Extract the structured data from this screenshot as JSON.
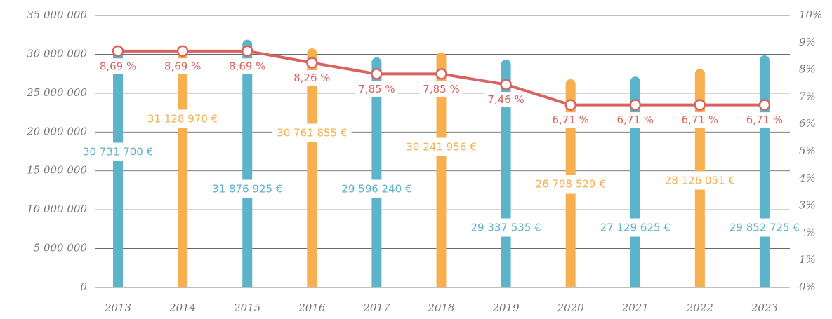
{
  "chart_data": {
    "type": "bar-line",
    "categories": [
      "2013",
      "2014",
      "2015",
      "2016",
      "2017",
      "2018",
      "2019",
      "2020",
      "2021",
      "2022",
      "2023"
    ],
    "series": [
      {
        "type": "bar",
        "colors": [
          "#5bb4c9",
          "#f7b050",
          "#5bb4c9",
          "#f7b050",
          "#5bb4c9",
          "#f7b050",
          "#5bb4c9",
          "#f7b050",
          "#5bb4c9",
          "#f7b050",
          "#5bb4c9"
        ],
        "values": [
          30731700,
          31128970,
          31876925,
          30761855,
          29596240,
          30241956,
          29337535,
          26798529,
          27129625,
          28126051,
          29852725
        ],
        "value_labels": [
          "30 731 700 €",
          "31 128 970 €",
          "31 876 925 €",
          "30 761 855 €",
          "29 596 240 €",
          "30 241 956 €",
          "29 337 535 €",
          "26 798 529 €",
          "27 129 625 €",
          "28 126 051 €",
          "29 852 725 €"
        ]
      },
      {
        "type": "line",
        "axis": "y2",
        "color": "#d9625f",
        "values": [
          8.69,
          8.69,
          8.69,
          8.26,
          7.85,
          7.85,
          7.46,
          6.71,
          6.71,
          6.71,
          6.71
        ],
        "value_labels": [
          "8,69 %",
          "8,69 %",
          "8,69 %",
          "8,26 %",
          "7,85 %",
          "7,85 %",
          "7,46 %",
          "6,71 %",
          "6,71 %",
          "6,71 %",
          "6,71 %"
        ]
      }
    ],
    "ylim": [
      0,
      35000000
    ],
    "yticks": [
      0,
      {
        "value": 5000000,
        "label": "5 000 000"
      },
      {
        "value": 10000000,
        "label": "10 000 000"
      },
      {
        "value": 15000000,
        "label": "15 000 000"
      },
      {
        "value": 20000000,
        "label": "20 000 000"
      },
      {
        "value": 25000000,
        "label": "25 000 000"
      },
      {
        "value": 30000000,
        "label": "30 000 000"
      },
      {
        "value": 35000000,
        "label": "35 000 000"
      }
    ],
    "y2lim": [
      0,
      10
    ],
    "y2ticks": [
      {
        "value": 0,
        "label": "0%"
      },
      {
        "value": 1,
        "label": "1%"
      },
      {
        "value": 2,
        "label": "2%"
      },
      {
        "value": 3,
        "label": "3%"
      },
      {
        "value": 4,
        "label": "4%"
      },
      {
        "value": 5,
        "label": "5%"
      },
      {
        "value": 6,
        "label": "6%"
      },
      {
        "value": 7,
        "label": "7%"
      },
      {
        "value": 8,
        "label": "8%"
      },
      {
        "value": 9,
        "label": "9%"
      },
      {
        "value": 10,
        "label": "10%"
      }
    ],
    "grid": true
  }
}
